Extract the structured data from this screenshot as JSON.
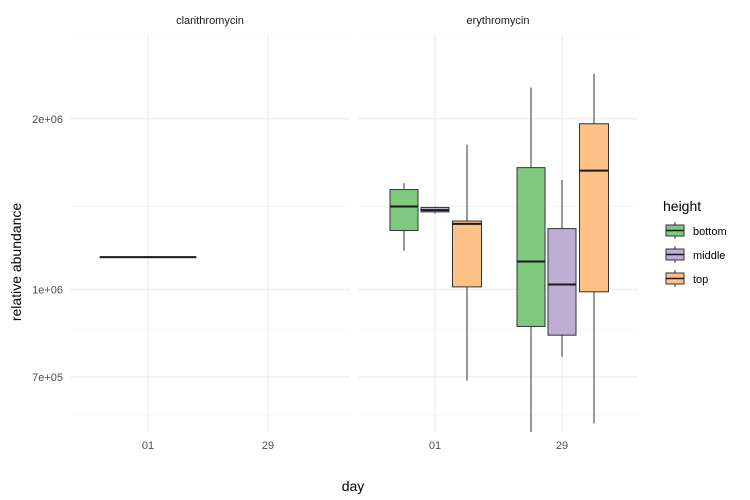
{
  "chart_data": {
    "type": "boxplot",
    "xlabel": "day",
    "ylabel": "relative abundance",
    "y_scale": "log10",
    "ylim": [
      560000,
      2800000
    ],
    "y_ticks": [
      {
        "value": 700000,
        "label": "7e+05"
      },
      {
        "value": 1000000,
        "label": "1e+06"
      },
      {
        "value": 2000000,
        "label": "2e+06"
      }
    ],
    "y_minor_ticks": [
      600000,
      850000,
      1400000,
      2800000
    ],
    "categories": [
      "01",
      "29"
    ],
    "legend": {
      "title": "height",
      "position": "right",
      "entries": [
        {
          "name": "bottom",
          "color": "#7fc97f"
        },
        {
          "name": "middle",
          "color": "#beaed4"
        },
        {
          "name": "top",
          "color": "#fdc086"
        }
      ]
    },
    "panels": [
      {
        "name": "clarithromycin",
        "boxes": [
          {
            "day": "01",
            "group": "all",
            "min": 1140000,
            "q1": 1140000,
            "median": 1140000,
            "q3": 1140000,
            "max": 1140000
          }
        ]
      },
      {
        "name": "erythromycin",
        "boxes": [
          {
            "day": "01",
            "group": "bottom",
            "min": 1170000,
            "q1": 1270000,
            "median": 1400000,
            "q3": 1500000,
            "max": 1540000
          },
          {
            "day": "01",
            "group": "middle",
            "min": 1360000,
            "q1": 1370000,
            "median": 1380000,
            "q3": 1395000,
            "max": 1400000
          },
          {
            "day": "01",
            "group": "top",
            "min": 690000,
            "q1": 1010000,
            "median": 1305000,
            "q3": 1320000,
            "max": 1800000
          },
          {
            "day": "29",
            "group": "bottom",
            "min": 560000,
            "q1": 860000,
            "median": 1120000,
            "q3": 1640000,
            "max": 2270000
          },
          {
            "day": "29",
            "group": "middle",
            "min": 760000,
            "q1": 830000,
            "median": 1020000,
            "q3": 1280000,
            "max": 1560000
          },
          {
            "day": "29",
            "group": "top",
            "min": 580000,
            "q1": 990000,
            "median": 1620000,
            "q3": 1960000,
            "max": 2400000
          }
        ]
      }
    ]
  }
}
